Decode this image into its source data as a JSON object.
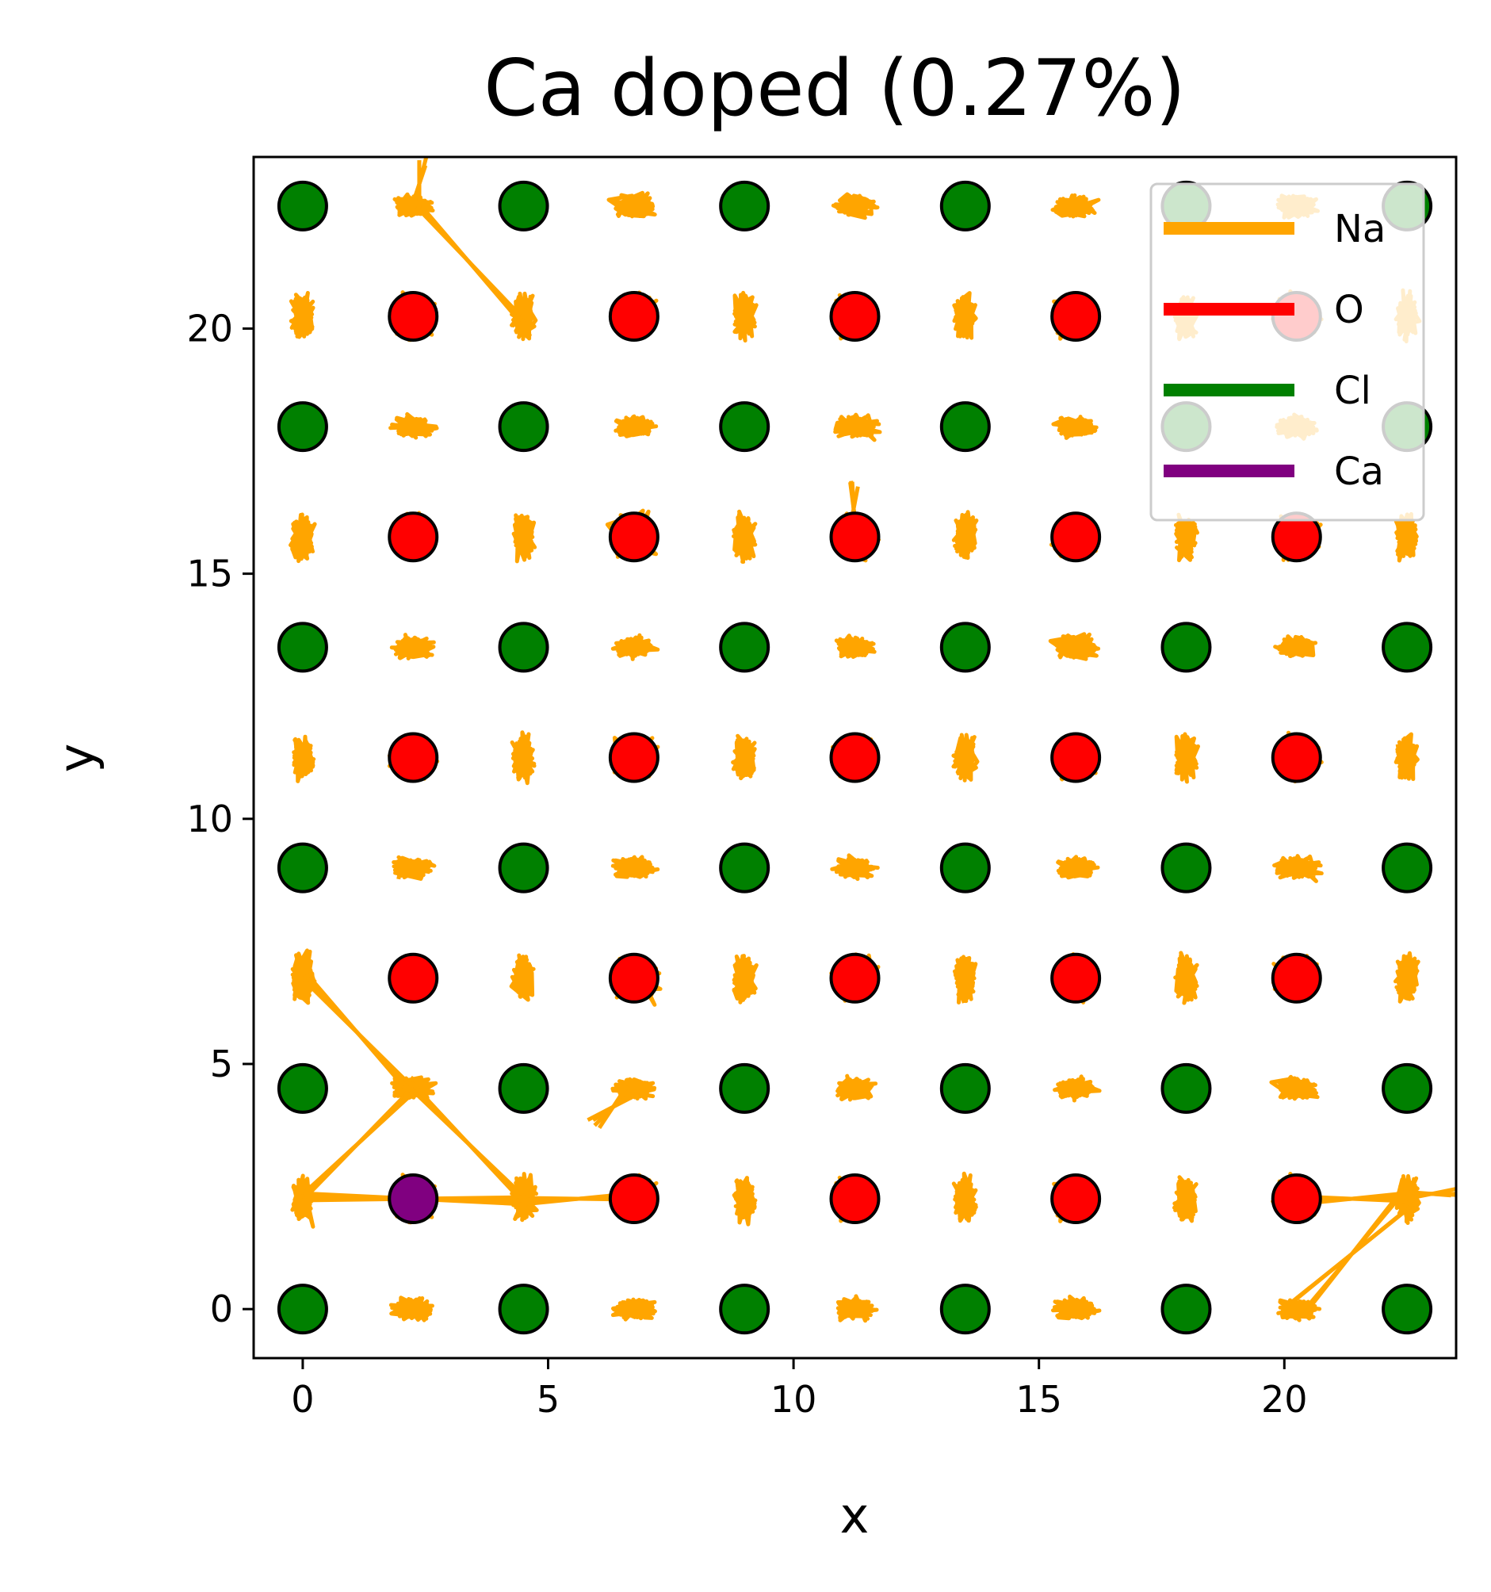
{
  "chart_data": {
    "type": "scatter",
    "title": "Ca doped (0.27%)",
    "xlabel": "x",
    "ylabel": "y",
    "xlim": [
      -1.0,
      23.5
    ],
    "ylim": [
      -1.0,
      23.5
    ],
    "xticks": [
      0,
      5,
      10,
      15,
      20
    ],
    "yticks": [
      0,
      5,
      10,
      15,
      20
    ],
    "grid": false,
    "legend_position": "top-right",
    "lattice_spacing": 2.25,
    "series": [
      {
        "name": "Na",
        "color": "#ffa500",
        "kind": "trajectory",
        "sites": [
          [
            2.25,
            0
          ],
          [
            6.75,
            0
          ],
          [
            11.25,
            0
          ],
          [
            15.75,
            0
          ],
          [
            20.25,
            0
          ],
          [
            0,
            2.25
          ],
          [
            4.5,
            2.25
          ],
          [
            9,
            2.25
          ],
          [
            13.5,
            2.25
          ],
          [
            18,
            2.25
          ],
          [
            22.5,
            2.25
          ],
          [
            2.25,
            4.5
          ],
          [
            6.75,
            4.5
          ],
          [
            11.25,
            4.5
          ],
          [
            15.75,
            4.5
          ],
          [
            20.25,
            4.5
          ],
          [
            0,
            6.75
          ],
          [
            4.5,
            6.75
          ],
          [
            9,
            6.75
          ],
          [
            13.5,
            6.75
          ],
          [
            18,
            6.75
          ],
          [
            22.5,
            6.75
          ],
          [
            2.25,
            9
          ],
          [
            6.75,
            9
          ],
          [
            11.25,
            9
          ],
          [
            15.75,
            9
          ],
          [
            20.25,
            9
          ],
          [
            0,
            11.25
          ],
          [
            4.5,
            11.25
          ],
          [
            9,
            11.25
          ],
          [
            13.5,
            11.25
          ],
          [
            18,
            11.25
          ],
          [
            22.5,
            11.25
          ],
          [
            2.25,
            13.5
          ],
          [
            6.75,
            13.5
          ],
          [
            11.25,
            13.5
          ],
          [
            15.75,
            13.5
          ],
          [
            20.25,
            13.5
          ],
          [
            0,
            15.75
          ],
          [
            4.5,
            15.75
          ],
          [
            9,
            15.75
          ],
          [
            13.5,
            15.75
          ],
          [
            18,
            15.75
          ],
          [
            22.5,
            15.75
          ],
          [
            2.25,
            18
          ],
          [
            6.75,
            18
          ],
          [
            11.25,
            18
          ],
          [
            15.75,
            18
          ],
          [
            20.25,
            18
          ],
          [
            0,
            20.25
          ],
          [
            4.5,
            20.25
          ],
          [
            9,
            20.25
          ],
          [
            13.5,
            20.25
          ],
          [
            18,
            20.25
          ],
          [
            22.5,
            20.25
          ],
          [
            2.25,
            22.5
          ],
          [
            6.75,
            22.5
          ],
          [
            11.25,
            22.5
          ],
          [
            15.75,
            22.5
          ],
          [
            20.25,
            22.5
          ],
          [
            2.25,
            2.25
          ],
          [
            6.75,
            2.25
          ],
          [
            11.25,
            2.25
          ],
          [
            15.75,
            2.25
          ],
          [
            20.25,
            2.25
          ],
          [
            2.25,
            6.75
          ],
          [
            6.75,
            6.75
          ],
          [
            11.25,
            6.75
          ],
          [
            15.75,
            6.75
          ],
          [
            20.25,
            6.75
          ],
          [
            2.25,
            11.25
          ],
          [
            6.75,
            11.25
          ],
          [
            11.25,
            11.25
          ],
          [
            15.75,
            11.25
          ],
          [
            20.25,
            11.25
          ],
          [
            2.25,
            15.75
          ],
          [
            6.75,
            15.75
          ],
          [
            11.25,
            15.75
          ],
          [
            15.75,
            15.75
          ],
          [
            20.25,
            15.75
          ],
          [
            2.25,
            20.25
          ],
          [
            6.75,
            20.25
          ],
          [
            11.25,
            20.25
          ],
          [
            15.75,
            20.25
          ],
          [
            20.25,
            20.25
          ]
        ],
        "jumps": [
          [
            [
              2.25,
              22.5
            ],
            [
              4.5,
              20.25
            ]
          ],
          [
            [
              2.25,
              22.5
            ],
            [
              2.5,
              23.4
            ]
          ],
          [
            [
              2.25,
              4.5
            ],
            [
              0,
              6.75
            ]
          ],
          [
            [
              2.25,
              4.5
            ],
            [
              0,
              2.25
            ]
          ],
          [
            [
              2.25,
              4.5
            ],
            [
              4.5,
              2.25
            ]
          ],
          [
            [
              0,
              2.25
            ],
            [
              4.5,
              2.25
            ]
          ],
          [
            [
              4.5,
              2.25
            ],
            [
              6.75,
              2.25
            ]
          ],
          [
            [
              22.5,
              2.25
            ],
            [
              20.25,
              0
            ]
          ],
          [
            [
              22.5,
              2.25
            ],
            [
              23.5,
              2.45
            ]
          ],
          [
            [
              20.25,
              2.25
            ],
            [
              22.5,
              2.25
            ]
          ],
          [
            [
              6.75,
              4.5
            ],
            [
              5.9,
              3.75
            ]
          ],
          [
            [
              11.25,
              15.75
            ],
            [
              11.2,
              16.9
            ]
          ]
        ]
      },
      {
        "name": "O",
        "color": "#ff0000",
        "kind": "marker",
        "points": [
          [
            6.75,
            2.25
          ],
          [
            11.25,
            2.25
          ],
          [
            15.75,
            2.25
          ],
          [
            20.25,
            2.25
          ],
          [
            2.25,
            6.75
          ],
          [
            6.75,
            6.75
          ],
          [
            11.25,
            6.75
          ],
          [
            15.75,
            6.75
          ],
          [
            20.25,
            6.75
          ],
          [
            2.25,
            11.25
          ],
          [
            6.75,
            11.25
          ],
          [
            11.25,
            11.25
          ],
          [
            15.75,
            11.25
          ],
          [
            20.25,
            11.25
          ],
          [
            2.25,
            15.75
          ],
          [
            6.75,
            15.75
          ],
          [
            11.25,
            15.75
          ],
          [
            15.75,
            15.75
          ],
          [
            20.25,
            15.75
          ],
          [
            2.25,
            20.25
          ],
          [
            6.75,
            20.25
          ],
          [
            11.25,
            20.25
          ],
          [
            15.75,
            20.25
          ],
          [
            20.25,
            20.25
          ]
        ]
      },
      {
        "name": "Cl",
        "color": "#008000",
        "kind": "marker",
        "points": [
          [
            0,
            0
          ],
          [
            4.5,
            0
          ],
          [
            9,
            0
          ],
          [
            13.5,
            0
          ],
          [
            18,
            0
          ],
          [
            22.5,
            0
          ],
          [
            0,
            4.5
          ],
          [
            4.5,
            4.5
          ],
          [
            9,
            4.5
          ],
          [
            13.5,
            4.5
          ],
          [
            18,
            4.5
          ],
          [
            22.5,
            4.5
          ],
          [
            0,
            9
          ],
          [
            4.5,
            9
          ],
          [
            9,
            9
          ],
          [
            13.5,
            9
          ],
          [
            18,
            9
          ],
          [
            22.5,
            9
          ],
          [
            0,
            13.5
          ],
          [
            4.5,
            13.5
          ],
          [
            9,
            13.5
          ],
          [
            13.5,
            13.5
          ],
          [
            18,
            13.5
          ],
          [
            22.5,
            13.5
          ],
          [
            0,
            18
          ],
          [
            4.5,
            18
          ],
          [
            9,
            18
          ],
          [
            13.5,
            18
          ],
          [
            18,
            18
          ],
          [
            22.5,
            18
          ],
          [
            0,
            22.5
          ],
          [
            4.5,
            22.5
          ],
          [
            9,
            22.5
          ],
          [
            13.5,
            22.5
          ],
          [
            18,
            22.5
          ],
          [
            22.5,
            22.5
          ]
        ]
      },
      {
        "name": "Ca",
        "color": "#800080",
        "kind": "marker",
        "points": [
          [
            2.25,
            2.25
          ]
        ]
      }
    ]
  }
}
